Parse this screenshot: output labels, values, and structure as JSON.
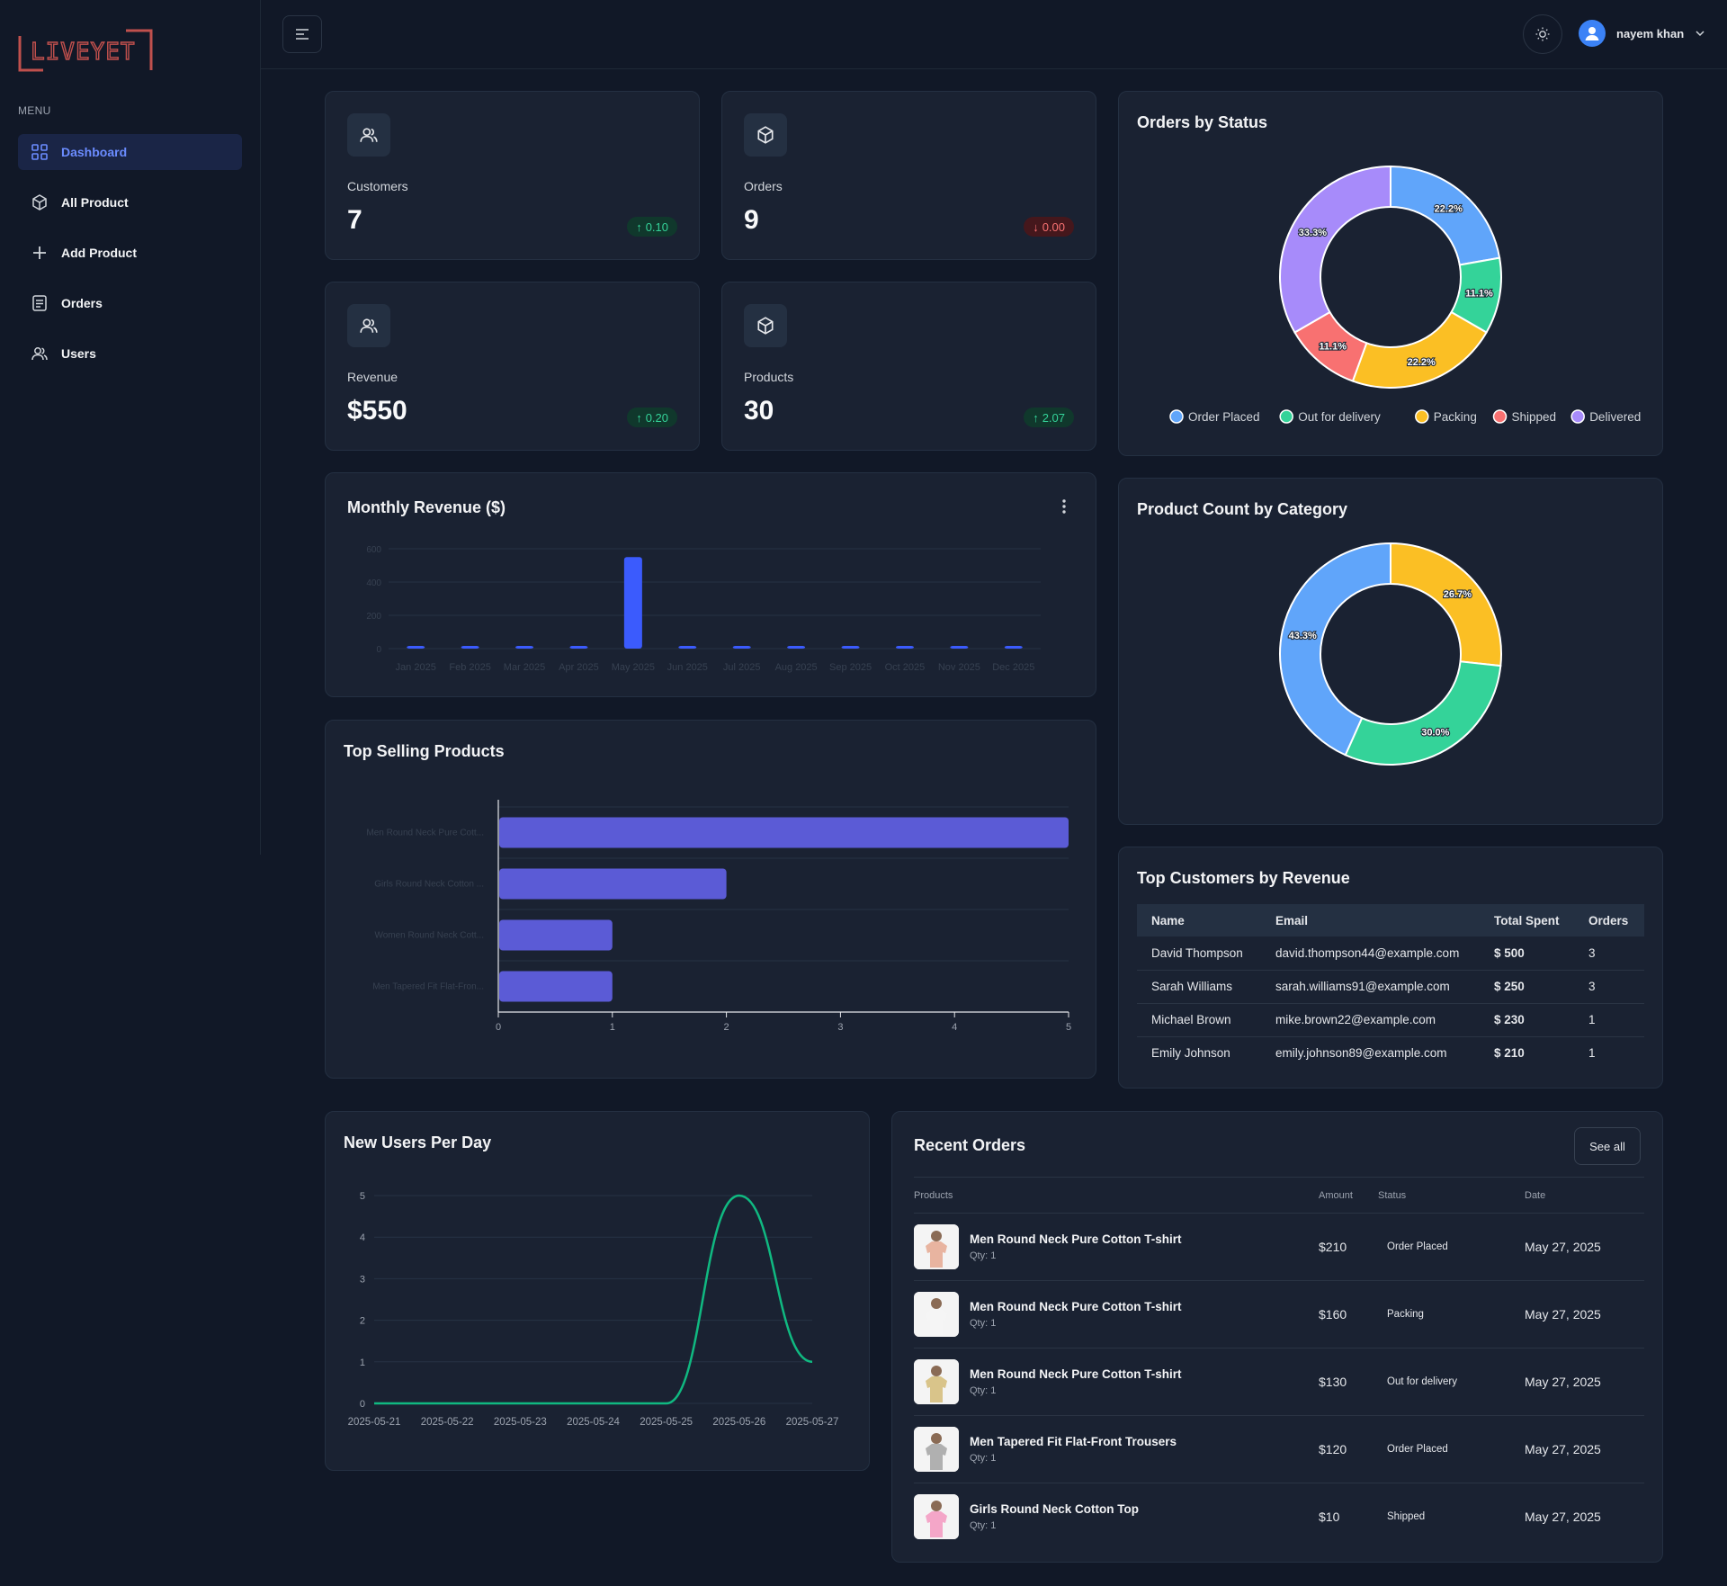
{
  "sidebar": {
    "logo_text": "LIVEYET",
    "menu_heading": "MENU",
    "items": [
      {
        "label": "Dashboard",
        "icon": "grid-icon",
        "active": true
      },
      {
        "label": "All Product",
        "icon": "cube-icon",
        "active": false
      },
      {
        "label": "Add Product",
        "icon": "plus-icon",
        "active": false
      },
      {
        "label": "Orders",
        "icon": "list-icon",
        "active": false
      },
      {
        "label": "Users",
        "icon": "users-icon",
        "active": false
      }
    ]
  },
  "header": {
    "user_name": "nayem khan"
  },
  "stats": [
    {
      "label": "Customers",
      "value": "7",
      "change": "0.10",
      "direction": "up",
      "icon": "users-icon"
    },
    {
      "label": "Orders",
      "value": "9",
      "change": "0.00",
      "direction": "down",
      "icon": "cube-icon"
    },
    {
      "label": "Revenue",
      "value": "$550",
      "change": "0.20",
      "direction": "up",
      "icon": "users-icon"
    },
    {
      "label": "Products",
      "value": "30",
      "change": "2.07",
      "direction": "up",
      "icon": "cube-icon"
    }
  ],
  "colors": {
    "accent": "#3b5bfd",
    "bar_purple": "#5b5bd6",
    "line_green": "#10b981",
    "blue": "#60a5fa",
    "green": "#34d399",
    "yellow": "#fbbf24",
    "red": "#f87171",
    "purple": "#a78bfa"
  },
  "orders_by_status": {
    "title": "Orders by Status",
    "legend": [
      "Order Placed",
      "Out for delivery",
      "Packing",
      "Shipped",
      "Delivered"
    ]
  },
  "product_count": {
    "title": "Product Count by Category"
  },
  "monthly_revenue": {
    "title": "Monthly Revenue ($)"
  },
  "top_selling": {
    "title": "Top Selling Products"
  },
  "new_users": {
    "title": "New Users Per Day"
  },
  "top_customers": {
    "title": "Top Customers by Revenue",
    "columns": [
      "Name",
      "Email",
      "Total Spent",
      "Orders"
    ],
    "rows": [
      [
        "David Thompson",
        "david.thompson44@example.com",
        "$ 500",
        "3"
      ],
      [
        "Sarah Williams",
        "sarah.williams91@example.com",
        "$ 250",
        "3"
      ],
      [
        "Michael Brown",
        "mike.brown22@example.com",
        "$ 230",
        "1"
      ],
      [
        "Emily Johnson",
        "emily.johnson89@example.com",
        "$ 210",
        "1"
      ]
    ]
  },
  "recent_orders": {
    "title": "Recent Orders",
    "see_all": "See all",
    "columns": [
      "Products",
      "Amount",
      "Status",
      "Date"
    ],
    "rows": [
      {
        "product": "Men Round Neck Pure Cotton T-shirt",
        "qty": "Qty: 1",
        "amount": "$210",
        "status": "Order Placed",
        "date": "May 27, 2025",
        "thumb_color": "#e8b4a0"
      },
      {
        "product": "Men Round Neck Pure Cotton T-shirt",
        "qty": "Qty: 1",
        "amount": "$160",
        "status": "Packing",
        "date": "May 27, 2025",
        "thumb_color": "#f5f5f5"
      },
      {
        "product": "Men Round Neck Pure Cotton T-shirt",
        "qty": "Qty: 1",
        "amount": "$130",
        "status": "Out for delivery",
        "date": "May 27, 2025",
        "thumb_color": "#d9c48a"
      },
      {
        "product": "Men Tapered Fit Flat-Front Trousers",
        "qty": "Qty: 1",
        "amount": "$120",
        "status": "Order Placed",
        "date": "May 27, 2025",
        "thumb_color": "#b0b0b0"
      },
      {
        "product": "Girls Round Neck Cotton Top",
        "qty": "Qty: 1",
        "amount": "$10",
        "status": "Shipped",
        "date": "May 27, 2025",
        "thumb_color": "#f4a6c8"
      }
    ]
  },
  "chart_data": [
    {
      "type": "pie",
      "title": "Orders by Status",
      "categories": [
        "Order Placed",
        "Out for delivery",
        "Packing",
        "Shipped",
        "Delivered"
      ],
      "values": [
        22.2,
        11.1,
        22.2,
        11.1,
        33.3
      ],
      "labels": [
        "22.2%",
        "11.1%",
        "22.2%",
        "11.1%",
        "33.3%"
      ],
      "colors": [
        "#60a5fa",
        "#34d399",
        "#fbbf24",
        "#f87171",
        "#a78bfa"
      ],
      "legend": "bottom"
    },
    {
      "type": "pie",
      "title": "Product Count by Category",
      "values": [
        26.7,
        30.0,
        43.3
      ],
      "labels": [
        "26.7%",
        "30.0%",
        "43.3%"
      ],
      "colors": [
        "#fbbf24",
        "#34d399",
        "#60a5fa"
      ]
    },
    {
      "type": "bar",
      "title": "Monthly Revenue ($)",
      "categories": [
        "Jan 2025",
        "Feb 2025",
        "Mar 2025",
        "Apr 2025",
        "May 2025",
        "Jun 2025",
        "Jul 2025",
        "Aug 2025",
        "Sep 2025",
        "Oct 2025",
        "Nov 2025",
        "Dec 2025"
      ],
      "values": [
        0,
        0,
        0,
        0,
        550,
        0,
        0,
        0,
        0,
        0,
        0,
        0
      ],
      "yticks": [
        0,
        200,
        400,
        600
      ],
      "ylim": [
        0,
        600
      ],
      "grid": true
    },
    {
      "type": "bar",
      "orientation": "horizontal",
      "title": "Top Selling Products",
      "categories": [
        "Men Round Neck Pure Cott...",
        "Girls Round Neck Cotton ...",
        "Women Round Neck Cott...",
        "Men Tapered Fit Flat-Fron..."
      ],
      "values": [
        5,
        2,
        1,
        1
      ],
      "xticks": [
        0,
        1,
        2,
        3,
        4,
        5
      ],
      "xlim": [
        0,
        5
      ],
      "grid": true
    },
    {
      "type": "line",
      "title": "New Users Per Day",
      "x": [
        "2025-05-21",
        "2025-05-22",
        "2025-05-23",
        "2025-05-24",
        "2025-05-25",
        "2025-05-26",
        "2025-05-27"
      ],
      "values": [
        0,
        0,
        0,
        0,
        0,
        5,
        1
      ],
      "yticks": [
        0,
        1,
        2,
        3,
        4,
        5
      ],
      "ylim": [
        0,
        5
      ],
      "grid": true
    }
  ]
}
